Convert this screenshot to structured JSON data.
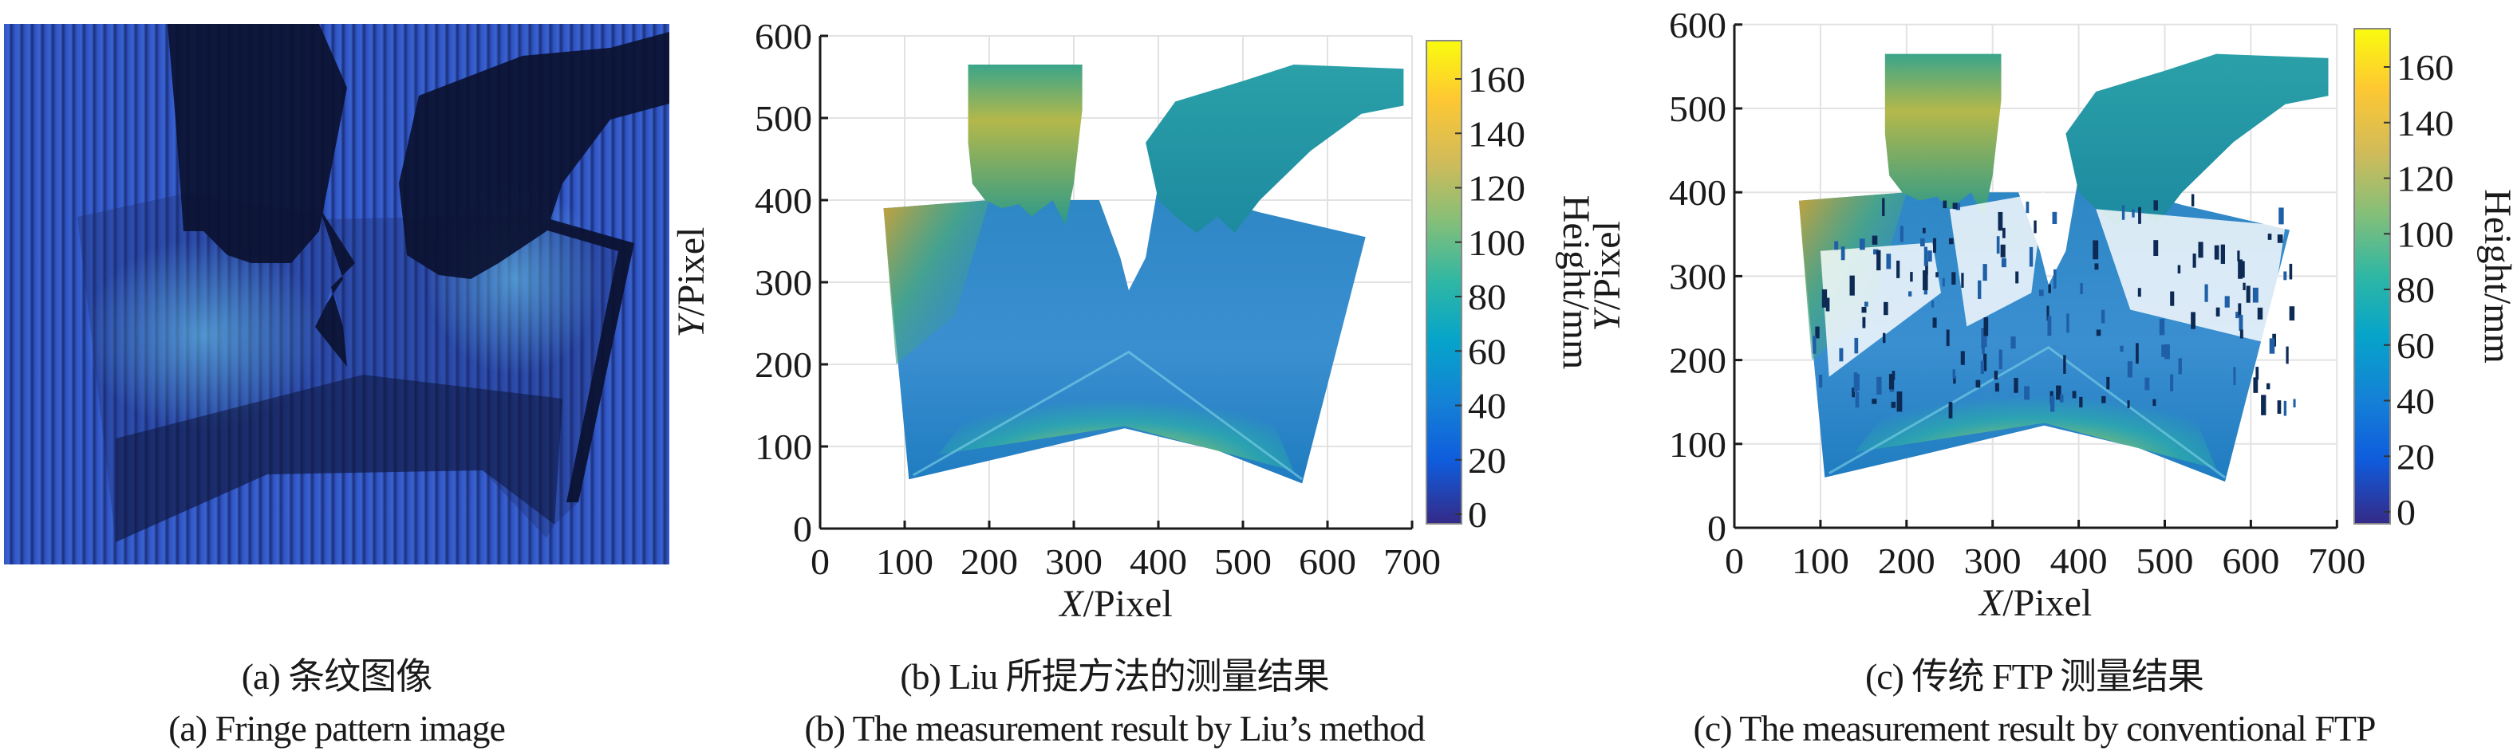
{
  "panels": [
    {
      "id": "a",
      "caption_zh": "(a) 条纹图像",
      "caption_en": "(a) Fringe pattern image"
    },
    {
      "id": "b",
      "caption_zh": "(b) Liu 所提方法的测量结果",
      "caption_en": "(b) The measurement result by Liu’s method"
    },
    {
      "id": "c",
      "caption_zh": "(c) 传统 FTP 测量结果",
      "caption_en": "(c) The measurement result by conventional FTP"
    }
  ],
  "chart_data": [
    {
      "type": "heatmap",
      "panel": "b",
      "xlabel_italic": "X",
      "xlabel_rest": "/Pixel",
      "ylabel_italic": "Y",
      "ylabel_rest": "/Pixel",
      "xlim": [
        0,
        700
      ],
      "ylim": [
        0,
        600
      ],
      "xticks": [
        "0",
        "100",
        "200",
        "300",
        "400",
        "500",
        "600",
        "700"
      ],
      "yticks": [
        "0",
        "100",
        "200",
        "300",
        "400",
        "500",
        "600"
      ],
      "grid": true,
      "colorbar": {
        "label": "Height/mm",
        "range": [
          0,
          172
        ],
        "ticks": [
          "0",
          "20",
          "40",
          "60",
          "80",
          "100",
          "120",
          "140",
          "160"
        ],
        "colormap": "parula"
      }
    },
    {
      "type": "heatmap",
      "panel": "c",
      "xlabel_italic": "X",
      "xlabel_rest": "/Pixel",
      "ylabel_italic": "Y",
      "ylabel_rest": "/Pixel",
      "xlim": [
        0,
        700
      ],
      "ylim": [
        0,
        600
      ],
      "xticks": [
        "0",
        "100",
        "200",
        "300",
        "400",
        "500",
        "600",
        "700"
      ],
      "yticks": [
        "0",
        "100",
        "200",
        "300",
        "400",
        "500",
        "600"
      ],
      "grid": true,
      "colorbar": {
        "label": "Height/mm",
        "range": [
          0,
          172
        ],
        "ticks": [
          "0",
          "20",
          "40",
          "60",
          "80",
          "100",
          "120",
          "140",
          "160"
        ],
        "colormap": "parula"
      }
    }
  ],
  "colors": {
    "parula": [
      "#352a87",
      "#0f5cdd",
      "#1481d6",
      "#06a4ca",
      "#2eb7a4",
      "#87bf77",
      "#d1bb59",
      "#fec832",
      "#f9fb0e"
    ],
    "fringe_blue": "#2f55c4"
  }
}
